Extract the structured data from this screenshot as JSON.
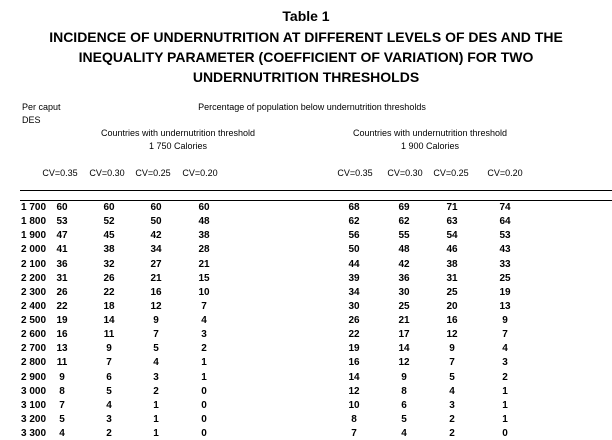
{
  "title": {
    "number": "Table 1",
    "lines": [
      "INCIDENCE OF UNDERNUTRITION AT DIFFERENT LEVELS OF DES AND THE",
      "INEQUALITY PARAMETER (COEFFICIENT OF VARIATION) FOR TWO",
      "UNDERNUTRITION THRESHOLDS"
    ]
  },
  "header": {
    "row_label": [
      "Per caput",
      "DES"
    ],
    "spanner": "Percentage of population below undernutrition thresholds",
    "groups": [
      {
        "label": "Countries with undernutrition threshold",
        "threshold": "1 750 Calories",
        "columns": [
          "CV=0.35",
          "CV=0.30",
          "CV=0.25",
          "CV=0.20"
        ]
      },
      {
        "label": "Countries with undernutrition threshold",
        "threshold": "1 900 Calories",
        "columns": [
          "CV=0.35",
          "CV=0.30",
          "CV=0.25",
          "CV=0.20"
        ]
      }
    ]
  },
  "table": {
    "rows": [
      {
        "des": "1 700",
        "values": [
          60,
          60,
          60,
          60,
          68,
          69,
          71,
          74
        ]
      },
      {
        "des": "1 800",
        "values": [
          53,
          52,
          50,
          48,
          62,
          62,
          63,
          64
        ]
      },
      {
        "des": "1 900",
        "values": [
          47,
          45,
          42,
          38,
          56,
          55,
          54,
          53
        ]
      },
      {
        "des": "2 000",
        "values": [
          41,
          38,
          34,
          28,
          50,
          48,
          46,
          43
        ]
      },
      {
        "des": "2 100",
        "values": [
          36,
          32,
          27,
          21,
          44,
          42,
          38,
          33
        ]
      },
      {
        "des": "2 200",
        "values": [
          31,
          26,
          21,
          15,
          39,
          36,
          31,
          25
        ]
      },
      {
        "des": "2 300",
        "values": [
          26,
          22,
          16,
          10,
          34,
          30,
          25,
          19
        ]
      },
      {
        "des": "2 400",
        "values": [
          22,
          18,
          12,
          7,
          30,
          25,
          20,
          13
        ]
      },
      {
        "des": "2 500",
        "values": [
          19,
          14,
          9,
          4,
          26,
          21,
          16,
          9
        ]
      },
      {
        "des": "2 600",
        "values": [
          16,
          11,
          7,
          3,
          22,
          17,
          12,
          7
        ]
      },
      {
        "des": "2 700",
        "values": [
          13,
          9,
          5,
          2,
          19,
          14,
          9,
          4
        ]
      },
      {
        "des": "2 800",
        "values": [
          11,
          7,
          4,
          1,
          16,
          12,
          7,
          3
        ]
      },
      {
        "des": "2 900",
        "values": [
          9,
          6,
          3,
          1,
          14,
          9,
          5,
          2
        ]
      },
      {
        "des": "3 000",
        "values": [
          8,
          5,
          2,
          0,
          12,
          8,
          4,
          1
        ]
      },
      {
        "des": "3 100",
        "values": [
          7,
          4,
          1,
          0,
          10,
          6,
          3,
          1
        ]
      },
      {
        "des": "3 200",
        "values": [
          5,
          3,
          1,
          0,
          8,
          5,
          2,
          1
        ]
      },
      {
        "des": "3 300",
        "values": [
          4,
          2,
          1,
          0,
          7,
          4,
          2,
          0
        ]
      }
    ]
  }
}
